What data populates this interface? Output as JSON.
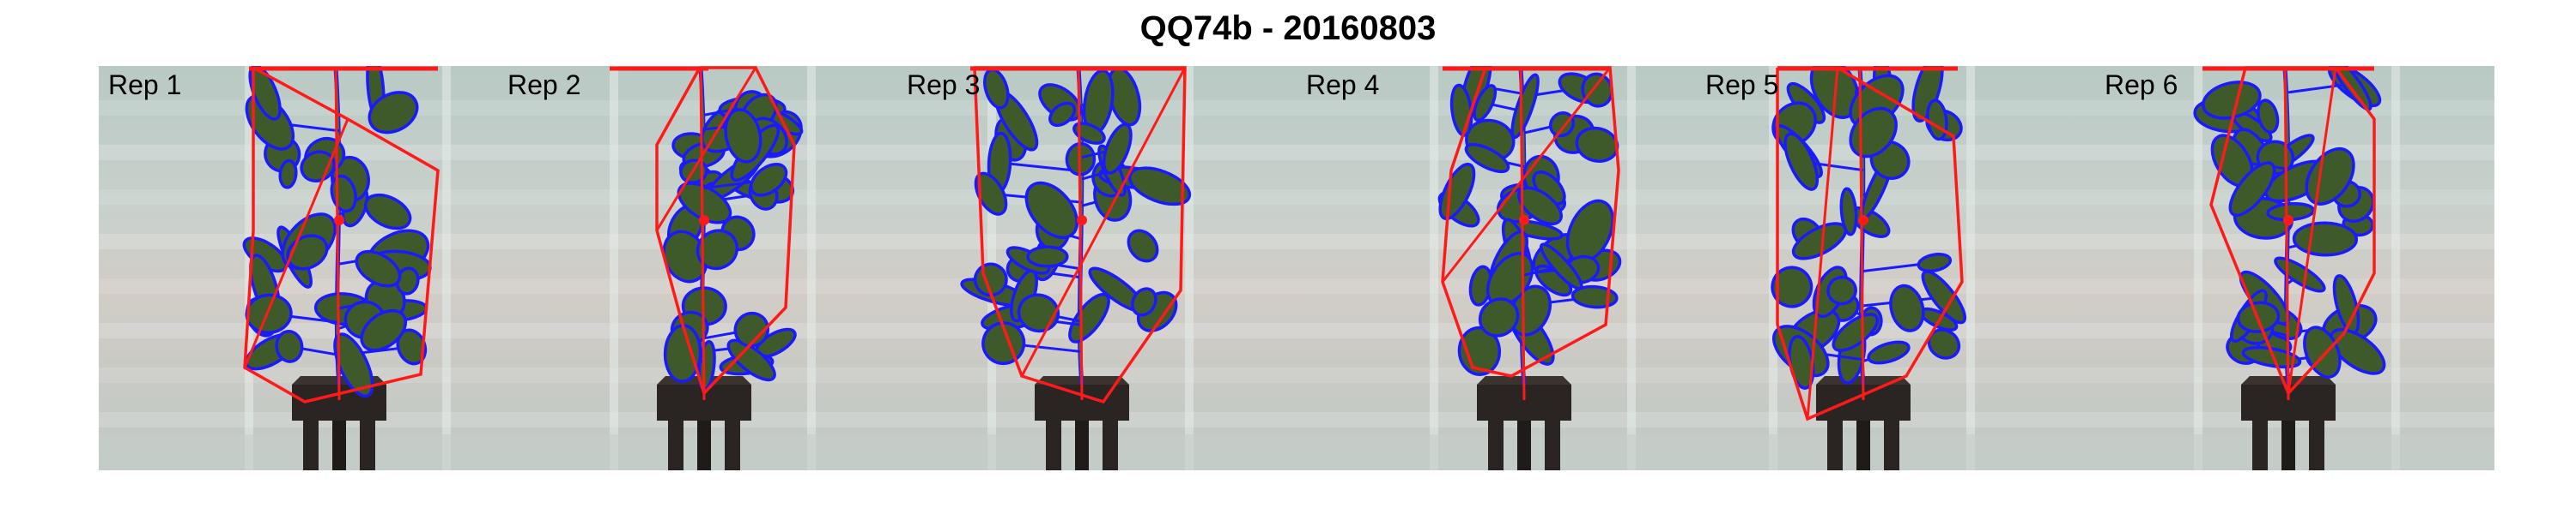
{
  "title": "QQ74b - 20160803",
  "panels": [
    {
      "label": "Rep 1"
    },
    {
      "label": "Rep 2"
    },
    {
      "label": "Rep 3"
    },
    {
      "label": "Rep 4"
    },
    {
      "label": "Rep 5"
    },
    {
      "label": "Rep 6"
    }
  ],
  "colors": {
    "hull": "#ff1a1a",
    "leaf_outline": "#1a1aff",
    "leaf_fill": "#3f5a2a",
    "background": "#c9d3cf",
    "pot": "#2a2522"
  }
}
